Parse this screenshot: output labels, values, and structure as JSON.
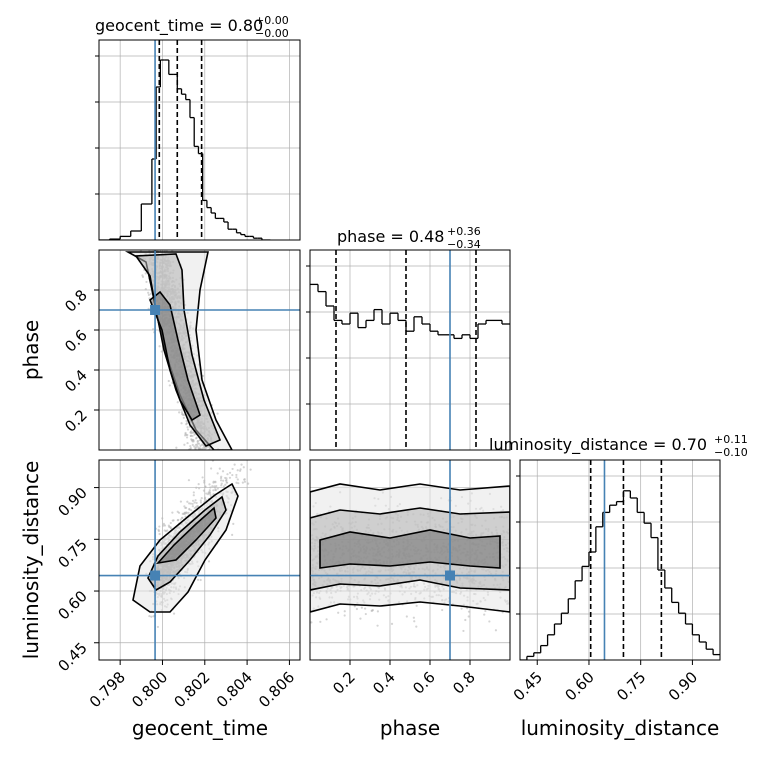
{
  "colors": {
    "truth": "#4682b4",
    "hist": "#000000",
    "grid": "#b0b0b0",
    "quantile": "#000000",
    "scatter": "#b8b8b8"
  },
  "chart_data": {
    "type": "corner",
    "parameters": [
      "geocent_time",
      "phase",
      "luminosity_distance"
    ],
    "titles": [
      {
        "param": "geocent_time",
        "median": "0.80",
        "plus": "+0.00",
        "minus": "−0.00"
      },
      {
        "param": "phase",
        "median": "0.48",
        "plus": "+0.36",
        "minus": "−0.34"
      },
      {
        "param": "luminosity_distance",
        "median": "0.70",
        "plus": "+0.11",
        "minus": "−0.10"
      }
    ],
    "ranges": {
      "geocent_time": [
        0.797,
        0.8065
      ],
      "phase": [
        0.0,
        1.0
      ],
      "luminosity_distance": [
        0.4,
        0.98
      ]
    },
    "ticks": {
      "geocent_time": [
        "0.798",
        "0.800",
        "0.802",
        "0.804",
        "0.806"
      ],
      "phase": [
        "0.2",
        "0.4",
        "0.6",
        "0.8"
      ],
      "luminosity_distance": [
        "0.45",
        "0.60",
        "0.75",
        "0.90"
      ]
    },
    "truths": {
      "geocent_time": 0.79965,
      "phase": 0.7,
      "luminosity_distance": 0.645
    },
    "quantiles": {
      "geocent_time": [
        0.79985,
        0.8007,
        0.80185
      ],
      "phase": [
        0.13,
        0.48,
        0.83
      ],
      "luminosity_distance": [
        0.605,
        0.7,
        0.81
      ]
    },
    "histograms": {
      "geocent_time": {
        "edges": [
          0.797,
          0.7975,
          0.798,
          0.7985,
          0.799,
          0.7995,
          0.7997,
          0.7999,
          0.8001,
          0.8003,
          0.8005,
          0.8007,
          0.8009,
          0.8011,
          0.8013,
          0.8015,
          0.8017,
          0.8019,
          0.8021,
          0.8023,
          0.8025,
          0.8027,
          0.8029,
          0.8031,
          0.8033,
          0.8035,
          0.8037,
          0.8039,
          0.8041,
          0.8043,
          0.8045,
          0.8047,
          0.8049,
          0.8051
        ],
        "counts": [
          0.0,
          0.005,
          0.02,
          0.05,
          0.2,
          0.45,
          0.85,
          1.0,
          1.0,
          0.92,
          0.92,
          0.84,
          0.81,
          0.78,
          0.68,
          0.52,
          0.48,
          0.22,
          0.18,
          0.15,
          0.12,
          0.12,
          0.1,
          0.06,
          0.06,
          0.04,
          0.03,
          0.02,
          0.02,
          0.01,
          0.01,
          0.0,
          0.0
        ]
      },
      "phase": {
        "edges": [
          0.0,
          0.04,
          0.08,
          0.12,
          0.16,
          0.2,
          0.24,
          0.28,
          0.32,
          0.36,
          0.4,
          0.44,
          0.48,
          0.52,
          0.56,
          0.6,
          0.64,
          0.68,
          0.72,
          0.76,
          0.8,
          0.84,
          0.88,
          0.92,
          0.96,
          1.0
        ],
        "counts": [
          0.92,
          0.88,
          0.8,
          0.72,
          0.7,
          0.76,
          0.68,
          0.72,
          0.78,
          0.7,
          0.76,
          0.72,
          0.66,
          0.74,
          0.7,
          0.66,
          0.64,
          0.64,
          0.62,
          0.64,
          0.62,
          0.7,
          0.72,
          0.72,
          0.7
        ]
      },
      "luminosity_distance": {
        "edges": [
          0.4,
          0.42,
          0.44,
          0.46,
          0.48,
          0.5,
          0.52,
          0.54,
          0.56,
          0.58,
          0.6,
          0.62,
          0.64,
          0.66,
          0.68,
          0.7,
          0.72,
          0.74,
          0.76,
          0.78,
          0.8,
          0.82,
          0.84,
          0.86,
          0.88,
          0.9,
          0.92,
          0.94,
          0.96,
          0.98
        ],
        "counts": [
          0.0,
          0.02,
          0.04,
          0.08,
          0.14,
          0.2,
          0.26,
          0.34,
          0.44,
          0.52,
          0.6,
          0.74,
          0.82,
          0.86,
          0.88,
          0.94,
          0.9,
          0.82,
          0.76,
          0.68,
          0.5,
          0.4,
          0.32,
          0.26,
          0.2,
          0.14,
          0.1,
          0.06,
          0.03
        ]
      }
    },
    "axis_labels": {
      "x": [
        "geocent_time",
        "phase",
        "luminosity_distance"
      ],
      "y": [
        "phase",
        "luminosity_distance"
      ]
    }
  }
}
